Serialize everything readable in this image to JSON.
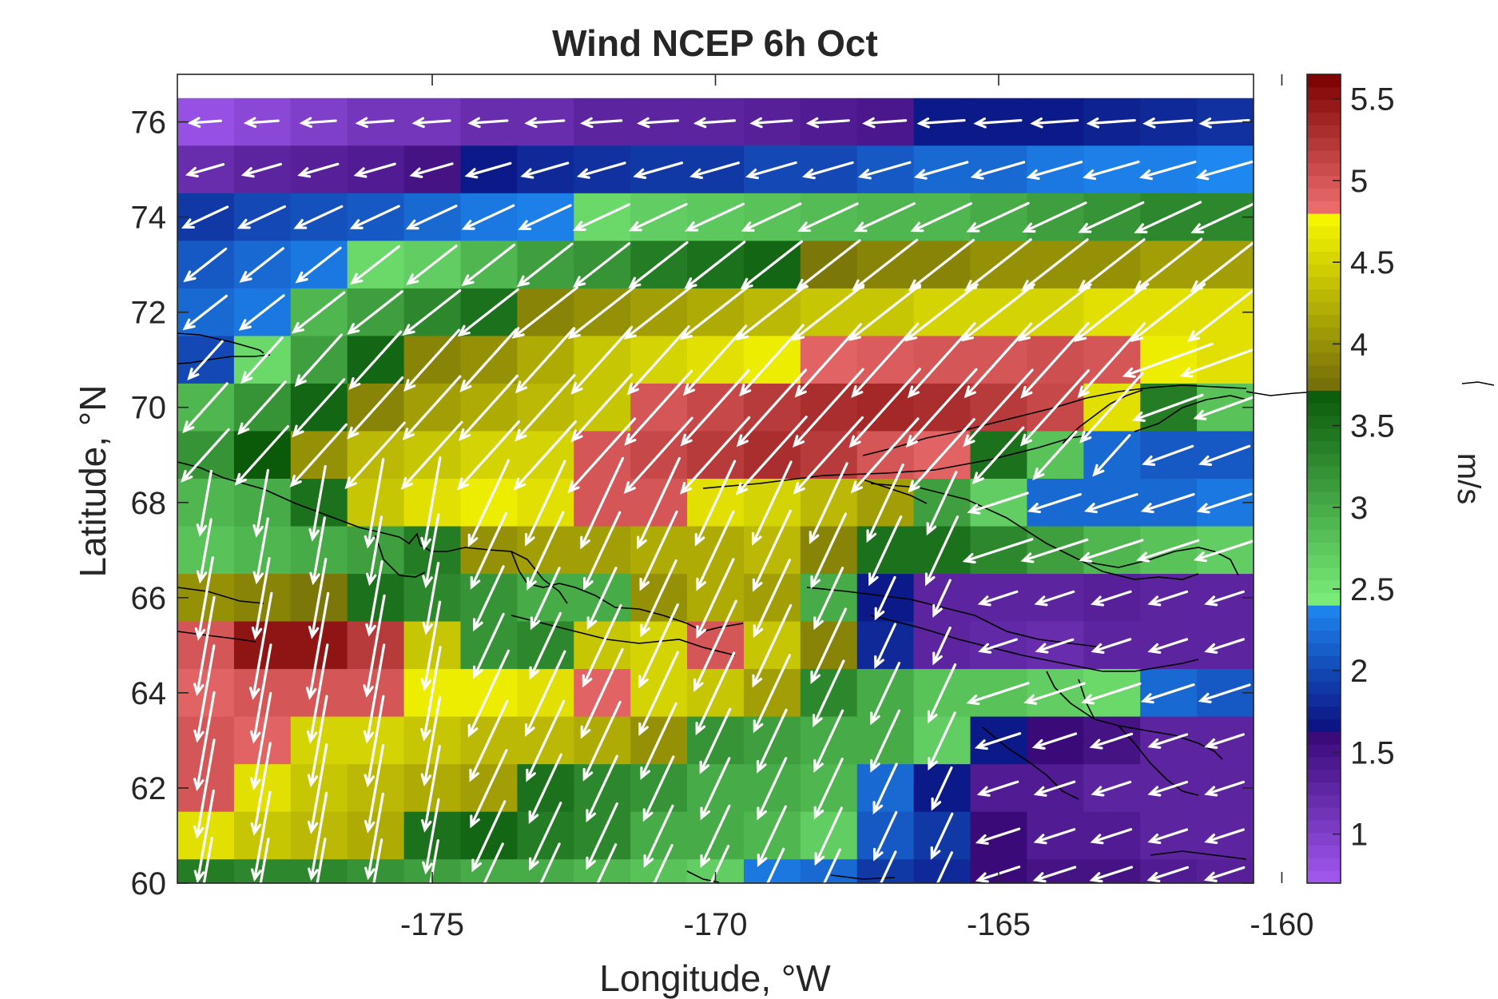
{
  "chart_data": {
    "type": "heatmap",
    "title": "Wind NCEP 6h Oct",
    "xlabel": "Longitude, °W",
    "ylabel": "Latitude, °N",
    "xlim": [
      -179.5,
      -160.5
    ],
    "ylim": [
      60,
      77
    ],
    "x_ticks": [
      -175,
      -170,
      -165,
      -160
    ],
    "y_ticks": [
      60,
      62,
      64,
      66,
      68,
      70,
      72,
      74,
      76
    ],
    "x_tick_labels": [
      "-175",
      "-170",
      "-165",
      "-160"
    ],
    "y_tick_labels": [
      "60",
      "62",
      "64",
      "66",
      "68",
      "70",
      "72",
      "74",
      "76"
    ],
    "colorbar": {
      "label": "m/s",
      "range": [
        0.7,
        5.65
      ],
      "ticks": [
        1,
        1.5,
        2,
        2.5,
        3,
        3.5,
        4,
        4.5,
        5,
        5.5
      ],
      "tick_labels": [
        "1",
        "1.5",
        "2",
        "2.5",
        "3",
        "3.5",
        "4",
        "4.5",
        "5",
        "5.5"
      ],
      "bands": [
        {
          "from": 0.7,
          "to": 1.6,
          "low": "#a259f0",
          "high": "#3a0a78"
        },
        {
          "from": 1.6,
          "to": 2.4,
          "low": "#0a0a7a",
          "high": "#1e88f0"
        },
        {
          "from": 2.4,
          "to": 3.7,
          "low": "#7cf07c",
          "high": "#0a5a0a"
        },
        {
          "from": 3.7,
          "to": 4.8,
          "low": "#6f6a0a",
          "high": "#fafa00"
        },
        {
          "from": 4.8,
          "to": 5.65,
          "low": "#f07070",
          "high": "#7a0000"
        }
      ]
    },
    "grid": {
      "lon_start": -179.5,
      "lon_step": 1,
      "lat_rows": [
        76,
        75,
        74,
        73,
        72,
        71,
        70,
        69,
        68,
        67,
        66,
        65,
        64,
        63,
        62,
        61,
        60
      ],
      "speed_m_s": [
        [
          0.8,
          0.9,
          1.0,
          1.1,
          1.1,
          1.2,
          1.2,
          1.3,
          1.3,
          1.3,
          1.35,
          1.4,
          1.45,
          1.7,
          1.7,
          1.7,
          1.75,
          1.8,
          1.85
        ],
        [
          1.2,
          1.3,
          1.35,
          1.4,
          1.5,
          1.7,
          1.8,
          1.85,
          1.9,
          1.9,
          2.0,
          2.0,
          2.1,
          2.2,
          2.2,
          2.3,
          2.35,
          2.35,
          2.4
        ],
        [
          1.9,
          2.0,
          2.05,
          2.1,
          2.2,
          2.3,
          2.35,
          2.6,
          2.7,
          2.75,
          2.8,
          2.85,
          2.9,
          2.9,
          3.0,
          3.1,
          3.2,
          3.3,
          3.3
        ],
        [
          2.1,
          2.2,
          2.3,
          2.6,
          2.7,
          2.9,
          3.1,
          3.2,
          3.4,
          3.5,
          3.6,
          3.8,
          3.9,
          3.9,
          4.0,
          4.0,
          4.0,
          4.1,
          4.1
        ],
        [
          2.2,
          2.3,
          2.9,
          3.1,
          3.3,
          3.5,
          3.9,
          4.0,
          4.1,
          4.2,
          4.3,
          4.4,
          4.4,
          4.5,
          4.5,
          4.5,
          4.6,
          4.6,
          4.6
        ],
        [
          2.0,
          2.6,
          3.1,
          3.6,
          3.9,
          4.0,
          4.2,
          4.4,
          4.5,
          4.6,
          4.7,
          4.9,
          4.95,
          5.0,
          5.0,
          5.05,
          5.0,
          4.7,
          4.6
        ],
        [
          2.9,
          3.2,
          3.6,
          3.9,
          4.1,
          4.2,
          4.3,
          4.4,
          5.0,
          5.1,
          5.2,
          5.3,
          5.35,
          5.3,
          5.2,
          5.1,
          4.6,
          3.4,
          2.8
        ],
        [
          3.2,
          3.7,
          4.0,
          4.3,
          4.4,
          4.5,
          4.5,
          5.0,
          5.1,
          5.2,
          5.3,
          5.2,
          5.0,
          4.9,
          3.5,
          2.8,
          2.2,
          2.1,
          2.1
        ],
        [
          2.9,
          3.0,
          3.5,
          4.4,
          4.6,
          4.7,
          4.6,
          5.0,
          5.0,
          4.6,
          4.5,
          4.3,
          4.1,
          3.1,
          2.7,
          2.2,
          2.2,
          2.2,
          2.3
        ],
        [
          2.8,
          2.9,
          3.0,
          3.1,
          3.4,
          4.0,
          4.1,
          4.1,
          4.2,
          4.2,
          4.3,
          3.9,
          3.5,
          3.5,
          3.3,
          3.1,
          2.9,
          2.8,
          2.7
        ],
        [
          4.0,
          3.9,
          3.8,
          3.5,
          3.3,
          3.2,
          3.0,
          3.0,
          4.0,
          4.2,
          4.1,
          3.0,
          1.7,
          1.3,
          1.3,
          1.3,
          1.35,
          1.3,
          1.3
        ],
        [
          5.0,
          5.5,
          5.5,
          5.2,
          4.4,
          3.2,
          3.3,
          4.4,
          4.5,
          5.0,
          4.4,
          3.9,
          1.8,
          1.3,
          1.25,
          1.2,
          1.3,
          1.3,
          1.3
        ],
        [
          4.9,
          5.0,
          5.0,
          5.0,
          4.7,
          4.7,
          4.6,
          4.9,
          4.5,
          4.4,
          4.1,
          3.3,
          3.0,
          2.8,
          2.8,
          2.7,
          2.6,
          2.2,
          2.1
        ],
        [
          5.0,
          4.9,
          4.5,
          4.5,
          4.4,
          4.3,
          4.3,
          4.2,
          4.0,
          3.2,
          3.1,
          3.0,
          3.0,
          2.7,
          1.7,
          1.6,
          1.5,
          1.3,
          1.3
        ],
        [
          5.0,
          4.6,
          4.4,
          4.3,
          4.2,
          4.1,
          3.5,
          3.3,
          3.2,
          3.0,
          3.0,
          2.9,
          2.2,
          1.7,
          1.4,
          1.4,
          1.3,
          1.3,
          1.3
        ],
        [
          4.6,
          4.4,
          4.3,
          4.2,
          3.5,
          3.6,
          3.4,
          3.3,
          3.0,
          3.0,
          2.9,
          2.7,
          2.1,
          1.9,
          1.6,
          1.4,
          1.4,
          1.3,
          1.3
        ],
        [
          3.4,
          3.3,
          3.3,
          3.2,
          3.1,
          3.0,
          3.0,
          2.9,
          2.8,
          2.7,
          2.3,
          2.2,
          1.9,
          1.8,
          1.6,
          1.5,
          1.5,
          1.4,
          1.35
        ]
      ]
    },
    "wind_vectors": {
      "unit": "m/s",
      "regions": [
        {
          "lat_min": 75.5,
          "direction_deg_from_east": 184
        },
        {
          "lat_min": 74.5,
          "direction_deg_from_east": 196
        },
        {
          "lat_min": 73.5,
          "direction_deg_from_east": 205
        },
        {
          "lat_min": 71.5,
          "direction_deg_from_east": 218
        },
        {
          "lat_min": 68.5,
          "direction_deg_from_east": 228
        },
        {
          "lat_min": 60,
          "direction_deg_from_east": 245,
          "note_lon_max": -169,
          "southerly_west": 262
        },
        {
          "lat_min": 60,
          "lon_min": -166.5,
          "direction_deg_from_east": 198
        }
      ]
    }
  }
}
